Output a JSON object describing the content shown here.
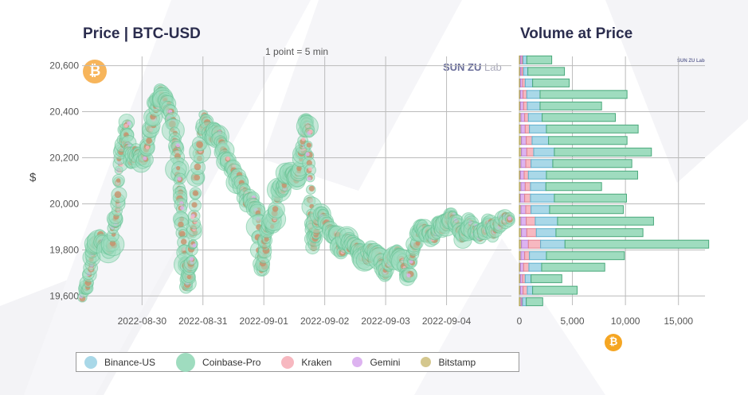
{
  "price_chart": {
    "title": "Price | BTC-USD",
    "subtitle": "1 point = 5 min",
    "logo": "SUN ZU",
    "logo_suffix": "Lab",
    "ylabel": "$",
    "coin_symbol": "₿"
  },
  "volume_chart": {
    "title": "Volume at Price",
    "logo": "SUN ZU Lab",
    "coin_symbol": "₿"
  },
  "colors": {
    "Binance-US": "#a9d8e8",
    "Coinbase-Pro": "#9fdcbf",
    "Kraken": "#f7b8c0",
    "Gemini": "#ddb3f0",
    "Bitstamp": "#d4c78e",
    "grid": "#bbbbbb",
    "center": "#c8906a"
  },
  "chart_data": [
    {
      "type": "scatter",
      "title": "Price | BTC-USD",
      "subtitle": "1 point = 5 min",
      "ylabel": "$",
      "x_tick_labels": [
        "2022-08-30",
        "2022-08-31",
        "2022-09-01",
        "2022-09-02",
        "2022-09-03",
        "2022-09-04"
      ],
      "y_tick_labels": [
        "19,600",
        "19,800",
        "20,000",
        "20,200",
        "20,400",
        "20,600"
      ],
      "y_ticks": [
        19600,
        19800,
        20000,
        20200,
        20400,
        20600
      ],
      "ylim": [
        19560,
        20640
      ],
      "xlim": [
        0,
        7.05
      ],
      "x_day_start_index": 0.985,
      "grid": true,
      "series": [
        {
          "name": "Binance-US"
        },
        {
          "name": "Coinbase-Pro"
        },
        {
          "name": "Kraken"
        },
        {
          "name": "Gemini"
        },
        {
          "name": "Bitstamp"
        }
      ],
      "price_path": [
        [
          0.0,
          19600
        ],
        [
          0.1,
          19660
        ],
        [
          0.18,
          19820
        ],
        [
          0.3,
          19850
        ],
        [
          0.42,
          19800
        ],
        [
          0.5,
          19840
        ],
        [
          0.58,
          20000
        ],
        [
          0.65,
          20230
        ],
        [
          0.72,
          20340
        ],
        [
          0.8,
          20180
        ],
        [
          0.9,
          20230
        ],
        [
          1.0,
          20180
        ],
        [
          1.1,
          20280
        ],
        [
          1.2,
          20420
        ],
        [
          1.28,
          20480
        ],
        [
          1.35,
          20440
        ],
        [
          1.45,
          20380
        ],
        [
          1.55,
          20250
        ],
        [
          1.6,
          20100
        ],
        [
          1.63,
          19950
        ],
        [
          1.68,
          19760
        ],
        [
          1.72,
          19650
        ],
        [
          1.78,
          19720
        ],
        [
          1.84,
          19900
        ],
        [
          1.9,
          20200
        ],
        [
          2.0,
          20370
        ],
        [
          2.1,
          20290
        ],
        [
          2.2,
          20320
        ],
        [
          2.3,
          20250
        ],
        [
          2.4,
          20180
        ],
        [
          2.5,
          20130
        ],
        [
          2.6,
          20080
        ],
        [
          2.7,
          20020
        ],
        [
          2.8,
          20010
        ],
        [
          2.88,
          19950
        ],
        [
          2.95,
          19700
        ],
        [
          3.0,
          19830
        ],
        [
          3.05,
          19900
        ],
        [
          3.15,
          19930
        ],
        [
          3.22,
          20080
        ],
        [
          3.3,
          20060
        ],
        [
          3.38,
          20140
        ],
        [
          3.45,
          20120
        ],
        [
          3.55,
          20120
        ],
        [
          3.62,
          20240
        ],
        [
          3.68,
          20380
        ],
        [
          3.72,
          20300
        ],
        [
          3.76,
          19940
        ],
        [
          3.8,
          19820
        ],
        [
          3.88,
          19940
        ],
        [
          3.95,
          19960
        ],
        [
          4.05,
          19890
        ],
        [
          4.15,
          19870
        ],
        [
          4.25,
          19800
        ],
        [
          4.35,
          19850
        ],
        [
          4.45,
          19810
        ],
        [
          4.55,
          19800
        ],
        [
          4.65,
          19760
        ],
        [
          4.75,
          19790
        ],
        [
          4.85,
          19780
        ],
        [
          4.95,
          19700
        ],
        [
          5.05,
          19750
        ],
        [
          5.15,
          19790
        ],
        [
          5.25,
          19760
        ],
        [
          5.35,
          19660
        ],
        [
          5.45,
          19820
        ],
        [
          5.55,
          19890
        ],
        [
          5.65,
          19870
        ],
        [
          5.75,
          19860
        ],
        [
          5.85,
          19900
        ],
        [
          5.95,
          19910
        ],
        [
          6.05,
          19940
        ],
        [
          6.15,
          19920
        ],
        [
          6.25,
          19850
        ],
        [
          6.35,
          19920
        ],
        [
          6.45,
          19880
        ],
        [
          6.55,
          19860
        ],
        [
          6.65,
          19910
        ],
        [
          6.75,
          19880
        ],
        [
          6.9,
          19930
        ],
        [
          7.05,
          19950
        ]
      ]
    },
    {
      "type": "bar",
      "orientation": "horizontal",
      "stacked": true,
      "title": "Volume at Price",
      "x_tick_labels": [
        "0",
        "5,000",
        "10,000",
        "15,000"
      ],
      "x_ticks": [
        0,
        5000,
        10000,
        15000
      ],
      "xlim": [
        0,
        17500
      ],
      "price_levels": [
        19575,
        19625,
        19675,
        19725,
        19775,
        19825,
        19875,
        19925,
        19975,
        20025,
        20075,
        20125,
        20175,
        20225,
        20275,
        20325,
        20375,
        20425,
        20475,
        20525,
        20575,
        20625
      ],
      "series": [
        {
          "name": "Bitstamp",
          "values": [
            150,
            100,
            100,
            100,
            150,
            200,
            200,
            150,
            150,
            100,
            150,
            100,
            150,
            200,
            200,
            150,
            150,
            100,
            100,
            100,
            100,
            100
          ]
        },
        {
          "name": "Gemini",
          "values": [
            100,
            250,
            200,
            300,
            350,
            650,
            500,
            500,
            450,
            400,
            400,
            350,
            450,
            500,
            450,
            400,
            350,
            300,
            250,
            200,
            150,
            150
          ]
        },
        {
          "name": "Kraken",
          "values": [
            50,
            400,
            250,
            500,
            450,
            1150,
            900,
            850,
            500,
            550,
            500,
            400,
            500,
            650,
            550,
            400,
            350,
            350,
            350,
            250,
            150,
            100
          ]
        },
        {
          "name": "Binance-US",
          "values": [
            350,
            500,
            550,
            1200,
            1600,
            2300,
            1850,
            2100,
            1750,
            2250,
            1450,
            1700,
            2050,
            1950,
            1550,
            1600,
            1300,
            1200,
            1250,
            700,
            400,
            350
          ]
        },
        {
          "name": "Coinbase-Pro",
          "values": [
            1550,
            4200,
            2900,
            5950,
            7350,
            13550,
            8200,
            9050,
            6950,
            6800,
            5250,
            8600,
            7450,
            9150,
            7400,
            8650,
            6900,
            5800,
            8200,
            3450,
            3450,
            2350
          ]
        }
      ]
    }
  ],
  "legend": {
    "items": [
      {
        "label": "Binance-US",
        "key": "Binance-US",
        "size": 14
      },
      {
        "label": "Coinbase-Pro",
        "key": "Coinbase-Pro",
        "size": 22
      },
      {
        "label": "Kraken",
        "key": "Kraken",
        "size": 14
      },
      {
        "label": "Gemini",
        "key": "Gemini",
        "size": 11
      },
      {
        "label": "Bitstamp",
        "key": "Bitstamp",
        "size": 11
      }
    ]
  }
}
